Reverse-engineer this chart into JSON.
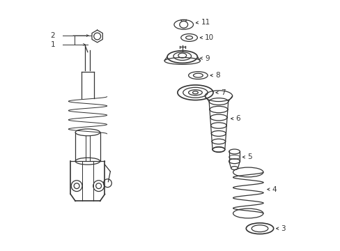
{
  "background_color": "#ffffff",
  "line_color": "#333333",
  "figsize": [
    4.89,
    3.6
  ],
  "dpi": 100,
  "lw": 0.9,
  "lw_thick": 1.2,
  "fontsize": 7.5
}
